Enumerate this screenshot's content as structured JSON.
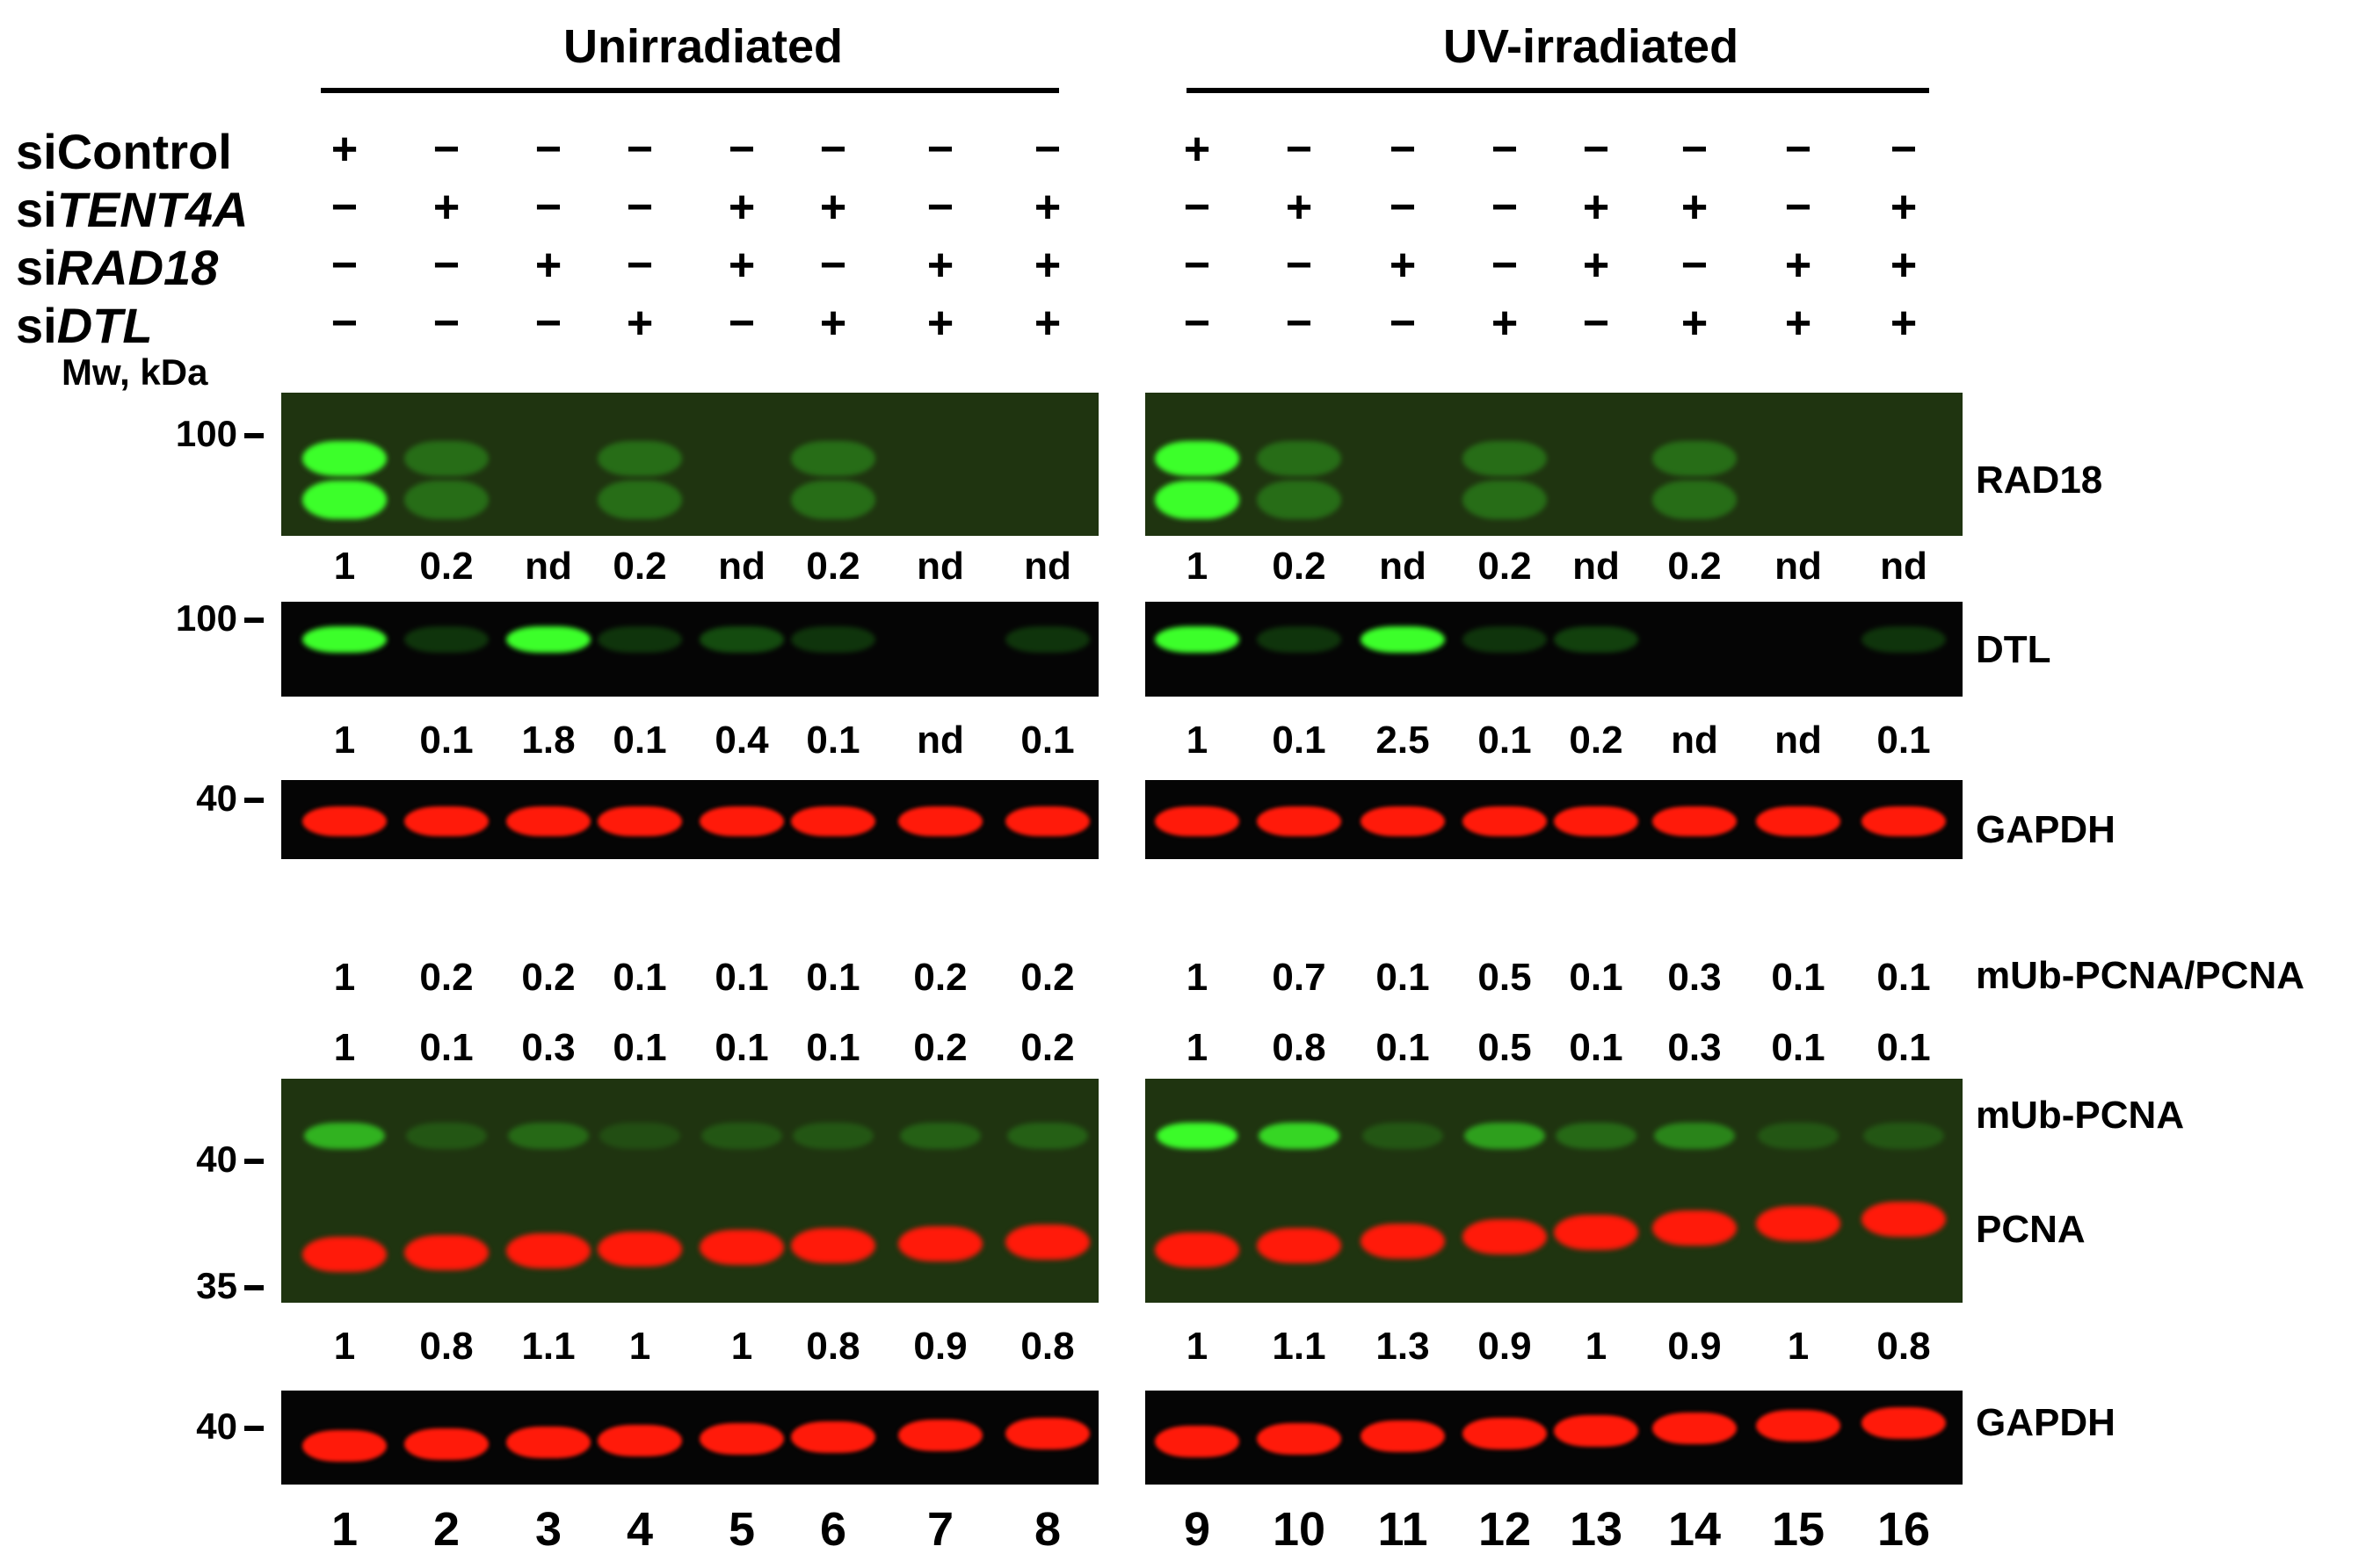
{
  "headers": [
    "Unirradiated",
    "UV-irradiated"
  ],
  "row_labels": [
    {
      "prefix": "si",
      "name": "Control",
      "italic": false
    },
    {
      "prefix": "si",
      "name": "TENT4A",
      "italic": true
    },
    {
      "prefix": "si",
      "name": "RAD18",
      "italic": true
    },
    {
      "prefix": "si",
      "name": "DTL",
      "italic": true
    }
  ],
  "mw_title": "Mw, kDa",
  "condition_matrix": [
    [
      "+",
      "−",
      "−",
      "−",
      "−",
      "−",
      "−",
      "−",
      "+",
      "−",
      "−",
      "−",
      "−",
      "−",
      "−",
      "−"
    ],
    [
      "−",
      "+",
      "−",
      "−",
      "+",
      "+",
      "−",
      "+",
      "−",
      "+",
      "−",
      "−",
      "+",
      "+",
      "−",
      "+"
    ],
    [
      "−",
      "−",
      "+",
      "−",
      "+",
      "−",
      "+",
      "+",
      "−",
      "−",
      "+",
      "−",
      "+",
      "−",
      "+",
      "+"
    ],
    [
      "−",
      "−",
      "−",
      "+",
      "−",
      "+",
      "+",
      "+",
      "−",
      "−",
      "−",
      "+",
      "−",
      "+",
      "+",
      "+"
    ]
  ],
  "markers": {
    "rad18": "100",
    "dtl": "100",
    "gapdh1": "40",
    "pcna_a": "40",
    "pcna_b": "35",
    "gapdh2": "40"
  },
  "protein_labels": {
    "rad18": "RAD18",
    "dtl": "DTL",
    "gapdh1": "GAPDH",
    "ratio": "mUb-PCNA/PCNA",
    "mub": "mUb-PCNA",
    "pcna": "PCNA",
    "gapdh2": "GAPDH"
  },
  "quant": {
    "rad18": [
      "1",
      "0.2",
      "nd",
      "0.2",
      "nd",
      "0.2",
      "nd",
      "nd",
      "1",
      "0.2",
      "nd",
      "0.2",
      "nd",
      "0.2",
      "nd",
      "nd"
    ],
    "dtl": [
      "1",
      "0.1",
      "1.8",
      "0.1",
      "0.4",
      "0.1",
      "nd",
      "0.1",
      "1",
      "0.1",
      "2.5",
      "0.1",
      "0.2",
      "nd",
      "nd",
      "0.1"
    ],
    "ratio_row1": [
      "1",
      "0.2",
      "0.2",
      "0.1",
      "0.1",
      "0.1",
      "0.2",
      "0.2",
      "1",
      "0.7",
      "0.1",
      "0.5",
      "0.1",
      "0.3",
      "0.1",
      "0.1"
    ],
    "ratio_row2": [
      "1",
      "0.1",
      "0.3",
      "0.1",
      "0.1",
      "0.1",
      "0.2",
      "0.2",
      "1",
      "0.8",
      "0.1",
      "0.5",
      "0.1",
      "0.3",
      "0.1",
      "0.1"
    ],
    "pcna": [
      "1",
      "0.8",
      "1.1",
      "1",
      "1",
      "0.8",
      "0.9",
      "0.8",
      "1",
      "1.1",
      "1.3",
      "0.9",
      "1",
      "0.9",
      "1",
      "0.8"
    ]
  },
  "lane_numbers": [
    "1",
    "2",
    "3",
    "4",
    "5",
    "6",
    "7",
    "8",
    "9",
    "10",
    "11",
    "12",
    "13",
    "14",
    "15",
    "16"
  ],
  "band_intensity": {
    "rad18": [
      1.0,
      0.2,
      0,
      0.2,
      0,
      0.2,
      0,
      0,
      1.0,
      0.2,
      0,
      0.2,
      0,
      0.2,
      0,
      0
    ],
    "dtl": [
      1.0,
      0.1,
      1.0,
      0.1,
      0.2,
      0.1,
      0,
      0.1,
      1.0,
      0.1,
      1.0,
      0.1,
      0.15,
      0,
      0,
      0.1
    ],
    "mub": [
      0.6,
      0.1,
      0.2,
      0.05,
      0.1,
      0.1,
      0.15,
      0.15,
      1.0,
      0.8,
      0.1,
      0.5,
      0.2,
      0.35,
      0.1,
      0.1
    ],
    "pcna": [
      1,
      1,
      1,
      1,
      1,
      1,
      1,
      1,
      1,
      1,
      1,
      1,
      1,
      1,
      1,
      1
    ],
    "gapdh": [
      1,
      1,
      1,
      1,
      1,
      1,
      1,
      1,
      1,
      1,
      1,
      1,
      1,
      1,
      1,
      1
    ]
  },
  "colors": {
    "green_bg": "#1f3410",
    "dark_bg": "#050505",
    "green_band": "#3cff2a",
    "red_band": "#ff1a0a"
  }
}
